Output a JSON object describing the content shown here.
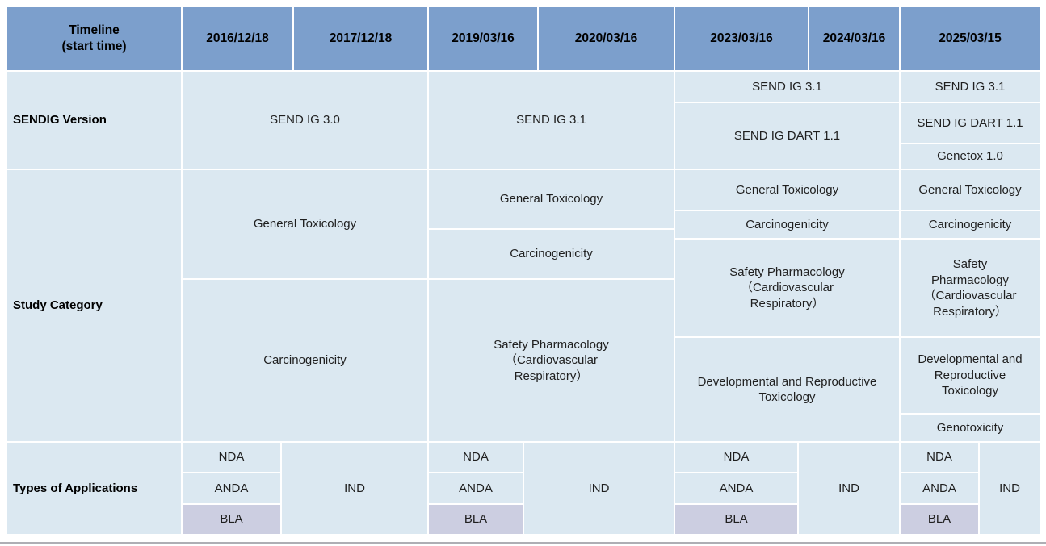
{
  "colors": {
    "header_bg": "#7c9fcc",
    "cell_bg": "#dbe8f1",
    "bla_bg": "#cccee1",
    "grid_line": "#ffffff",
    "text": "#1f1f1f",
    "header_text": "#000000",
    "bottom_rule": "#aeaeb4"
  },
  "header": {
    "timeline_label": "Timeline\n(start time)",
    "dates": {
      "d2016": "2016/12/18",
      "d2017": "2017/12/18",
      "d2019": "2019/03/16",
      "d2020": "2020/03/16",
      "d2023": "2023/03/16",
      "d2024": "2024/03/16",
      "d2025": "2025/03/15"
    }
  },
  "sendig_version": {
    "label": "SENDIG Version",
    "ig30_2016_2017": "SEND IG 3.0",
    "ig31_2019_2020": "SEND IG 3.1",
    "ig31_2023_2024": "SEND IG 3.1",
    "dart_2023_2024": "SEND IG DART 1.1",
    "ig31_2025": "SEND IG 3.1",
    "dart_2025": "SEND IG DART 1.1",
    "genetox_2025": "Genetox 1.0"
  },
  "study_category": {
    "label": "Study Category",
    "general_tox_2016_2017": "General Toxicology",
    "carcinogenicity_2016_2017": "Carcinogenicity",
    "general_tox_2019_2020": "General Toxicology",
    "carcinogenicity_2019_2020": "Carcinogenicity",
    "safety_pharm_2019_2020": "Safety Pharmacology\n（Cardiovascular\nRespiratory）",
    "general_tox_2023_2024": "General Toxicology",
    "carcinogenicity_2023_2024": "Carcinogenicity",
    "safety_pharm_2023_2024": "Safety Pharmacology\n（Cardiovascular\nRespiratory）",
    "dev_repro_tox_2023_2024": "Developmental and Reproductive\nToxicology",
    "general_tox_2025": "General Toxicology",
    "carcinogenicity_2025": "Carcinogenicity",
    "safety_pharm_2025": "Safety\nPharmacology\n（Cardiovascular\nRespiratory）",
    "dev_repro_tox_2025": "Developmental and\nReproductive\nToxicology",
    "genotoxicity_2025": "Genotoxicity"
  },
  "applications": {
    "label": "Types of Applications",
    "nda": "NDA",
    "anda": "ANDA",
    "bla": "BLA",
    "ind": "IND"
  }
}
